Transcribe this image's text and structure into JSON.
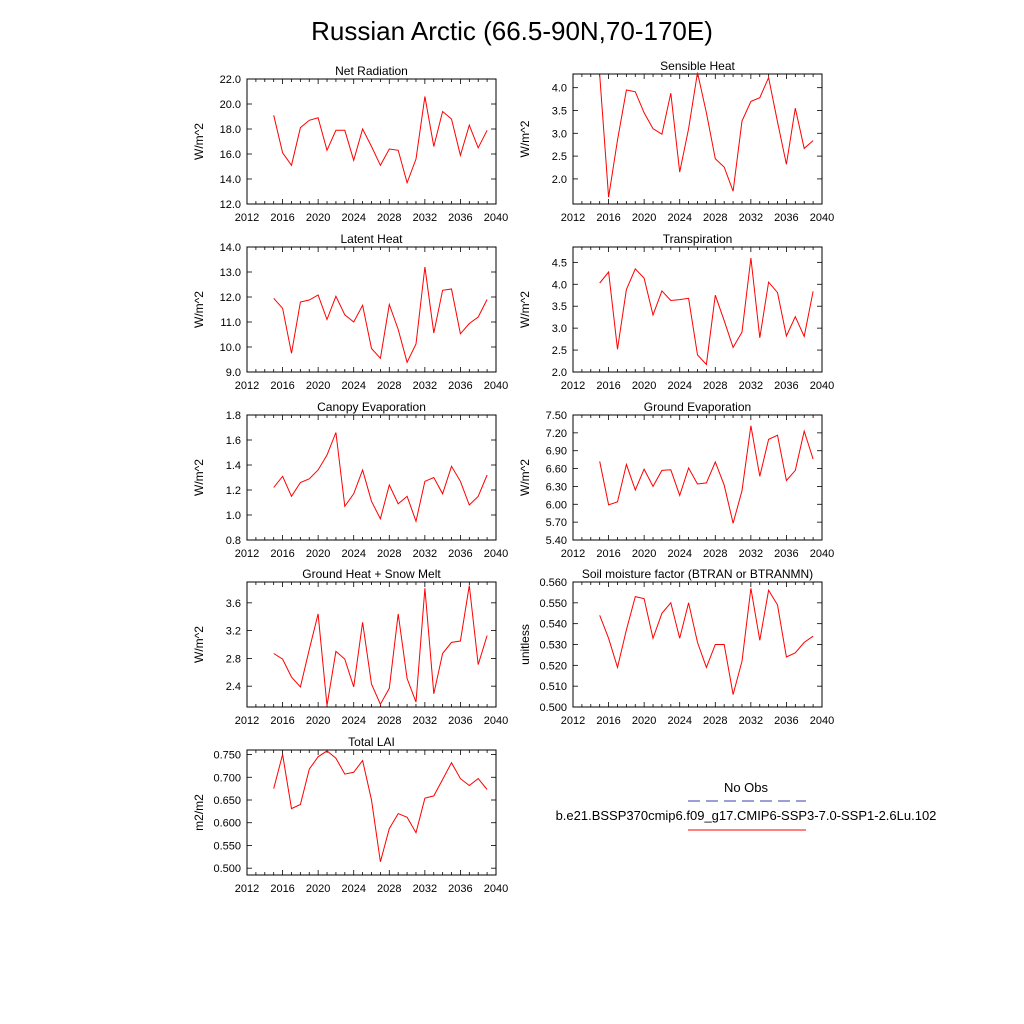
{
  "figure": {
    "title": "Russian Arctic (66.5-90N,70-170E)"
  },
  "legend": {
    "obs_label": "No Obs",
    "obs_color": "#3b3bb0",
    "model_label": "b.e21.BSSP370cmip6.f09_g17.CMIP6-SSP3-7.0-SSP1-2.6Lu.102",
    "model_color": "#ff0000"
  },
  "chart_data": [
    {
      "type": "line",
      "title": "Net Radiation",
      "ylabel": "W/m^2",
      "xlim": [
        2012,
        2040
      ],
      "ylim": [
        12,
        22
      ],
      "x_ticks": [
        "2012",
        "2016",
        "2020",
        "2024",
        "2028",
        "2032",
        "2036",
        "2040"
      ],
      "y_ticks": [
        "12.0",
        "14.0",
        "16.0",
        "18.0",
        "20.0",
        "22.0"
      ],
      "x": [
        2015,
        2016,
        2017,
        2018,
        2019,
        2020,
        2021,
        2022,
        2023,
        2024,
        2025,
        2026,
        2027,
        2028,
        2029,
        2030,
        2031,
        2032,
        2033,
        2034,
        2035,
        2036,
        2037,
        2038,
        2039
      ],
      "series": [
        {
          "color": "#ff0000",
          "values": [
            19.1,
            16.1,
            15.1,
            18.1,
            18.7,
            18.9,
            16.3,
            17.9,
            17.9,
            15.5,
            18.0,
            16.6,
            15.1,
            16.4,
            16.3,
            13.7,
            15.6,
            20.6,
            16.6,
            19.4,
            18.8,
            15.9,
            18.3,
            16.5,
            17.9
          ]
        }
      ]
    },
    {
      "type": "line",
      "title": "Sensible Heat",
      "ylabel": "W/m^2",
      "xlim": [
        2012,
        2040
      ],
      "ylim": [
        1.45,
        4.3
      ],
      "x_ticks": [
        "2012",
        "2016",
        "2020",
        "2024",
        "2028",
        "2032",
        "2036",
        "2040"
      ],
      "y_ticks": [
        "2.0",
        "2.5",
        "3.0",
        "3.5",
        "4.0"
      ],
      "x": [
        2015,
        2016,
        2017,
        2018,
        2019,
        2020,
        2021,
        2022,
        2023,
        2024,
        2025,
        2026,
        2027,
        2028,
        2029,
        2030,
        2031,
        2032,
        2033,
        2034,
        2035,
        2036,
        2037,
        2038,
        2039
      ],
      "series": [
        {
          "color": "#ff0000",
          "values": [
            4.28,
            1.6,
            2.85,
            3.95,
            3.91,
            3.45,
            3.1,
            2.98,
            3.88,
            2.15,
            3.1,
            4.33,
            3.45,
            2.44,
            2.26,
            1.73,
            3.27,
            3.7,
            3.78,
            4.22,
            3.25,
            2.32,
            3.55,
            2.67,
            2.84
          ]
        }
      ]
    },
    {
      "type": "line",
      "title": "Latent Heat",
      "ylabel": "W/m^2",
      "xlim": [
        2012,
        2040
      ],
      "ylim": [
        9,
        14
      ],
      "x_ticks": [
        "2012",
        "2016",
        "2020",
        "2024",
        "2028",
        "2032",
        "2036",
        "2040"
      ],
      "y_ticks": [
        "9.0",
        "10.0",
        "11.0",
        "12.0",
        "13.0",
        "14.0"
      ],
      "x": [
        2015,
        2016,
        2017,
        2018,
        2019,
        2020,
        2021,
        2022,
        2023,
        2024,
        2025,
        2026,
        2027,
        2028,
        2029,
        2030,
        2031,
        2032,
        2033,
        2034,
        2035,
        2036,
        2037,
        2038,
        2039
      ],
      "series": [
        {
          "color": "#ff0000",
          "values": [
            11.95,
            11.55,
            9.75,
            11.8,
            11.88,
            12.08,
            11.1,
            12.03,
            11.29,
            11.0,
            11.67,
            9.94,
            9.55,
            11.7,
            10.7,
            9.39,
            10.12,
            13.2,
            10.56,
            12.27,
            12.32,
            10.53,
            10.94,
            11.2,
            11.9
          ]
        }
      ]
    },
    {
      "type": "line",
      "title": "Transpiration",
      "ylabel": "W/m^2",
      "xlim": [
        2012,
        2040
      ],
      "ylim": [
        2.0,
        4.85
      ],
      "x_ticks": [
        "2012",
        "2016",
        "2020",
        "2024",
        "2028",
        "2032",
        "2036",
        "2040"
      ],
      "y_ticks": [
        "2.0",
        "2.5",
        "3.0",
        "3.5",
        "4.0",
        "4.5"
      ],
      "x": [
        2015,
        2016,
        2017,
        2018,
        2019,
        2020,
        2021,
        2022,
        2023,
        2024,
        2025,
        2026,
        2027,
        2028,
        2029,
        2030,
        2031,
        2032,
        2033,
        2034,
        2035,
        2036,
        2037,
        2038,
        2039
      ],
      "series": [
        {
          "color": "#ff0000",
          "values": [
            4.03,
            4.28,
            2.52,
            3.88,
            4.35,
            4.14,
            3.3,
            3.85,
            3.63,
            3.65,
            3.68,
            2.39,
            2.17,
            3.75,
            3.17,
            2.56,
            2.91,
            4.6,
            2.78,
            4.05,
            3.81,
            2.82,
            3.26,
            2.81,
            3.84
          ]
        }
      ]
    },
    {
      "type": "line",
      "title": "Canopy Evaporation",
      "ylabel": "W/m^2",
      "xlim": [
        2012,
        2040
      ],
      "ylim": [
        0.8,
        1.8
      ],
      "x_ticks": [
        "2012",
        "2016",
        "2020",
        "2024",
        "2028",
        "2032",
        "2036",
        "2040"
      ],
      "y_ticks": [
        "0.8",
        "1.0",
        "1.2",
        "1.4",
        "1.6",
        "1.8"
      ],
      "x": [
        2015,
        2016,
        2017,
        2018,
        2019,
        2020,
        2021,
        2022,
        2023,
        2024,
        2025,
        2026,
        2027,
        2028,
        2029,
        2030,
        2031,
        2032,
        2033,
        2034,
        2035,
        2036,
        2037,
        2038,
        2039
      ],
      "series": [
        {
          "color": "#ff0000",
          "values": [
            1.22,
            1.31,
            1.15,
            1.26,
            1.29,
            1.36,
            1.48,
            1.66,
            1.07,
            1.17,
            1.36,
            1.11,
            0.97,
            1.24,
            1.09,
            1.15,
            0.95,
            1.27,
            1.3,
            1.17,
            1.39,
            1.27,
            1.08,
            1.15,
            1.32
          ]
        }
      ]
    },
    {
      "type": "line",
      "title": "Ground Evaporation",
      "ylabel": "W/m^2",
      "xlim": [
        2012,
        2040
      ],
      "ylim": [
        5.4,
        7.5
      ],
      "x_ticks": [
        "2012",
        "2016",
        "2020",
        "2024",
        "2028",
        "2032",
        "2036",
        "2040"
      ],
      "y_ticks": [
        "5.40",
        "5.70",
        "6.00",
        "6.30",
        "6.60",
        "6.90",
        "7.20",
        "7.50"
      ],
      "x": [
        2015,
        2016,
        2017,
        2018,
        2019,
        2020,
        2021,
        2022,
        2023,
        2024,
        2025,
        2026,
        2027,
        2028,
        2029,
        2030,
        2031,
        2032,
        2033,
        2034,
        2035,
        2036,
        2037,
        2038,
        2039
      ],
      "series": [
        {
          "color": "#ff0000",
          "values": [
            6.72,
            5.99,
            6.04,
            6.67,
            6.24,
            6.59,
            6.3,
            6.57,
            6.58,
            6.15,
            6.61,
            6.34,
            6.36,
            6.71,
            6.32,
            5.68,
            6.23,
            7.32,
            6.47,
            7.09,
            7.16,
            6.4,
            6.57,
            7.23,
            6.76
          ]
        }
      ]
    },
    {
      "type": "line",
      "title": "Ground Heat + Snow Melt",
      "ylabel": "W/m^2",
      "xlim": [
        2012,
        2040
      ],
      "ylim": [
        2.1,
        3.9
      ],
      "x_ticks": [
        "2012",
        "2016",
        "2020",
        "2024",
        "2028",
        "2032",
        "2036",
        "2040"
      ],
      "y_ticks": [
        "2.4",
        "2.8",
        "3.2",
        "3.6"
      ],
      "x": [
        2015,
        2016,
        2017,
        2018,
        2019,
        2020,
        2021,
        2022,
        2023,
        2024,
        2025,
        2026,
        2027,
        2028,
        2029,
        2030,
        2031,
        2032,
        2033,
        2034,
        2035,
        2036,
        2037,
        2038,
        2039
      ],
      "series": [
        {
          "color": "#ff0000",
          "values": [
            2.87,
            2.79,
            2.53,
            2.39,
            2.93,
            3.44,
            2.12,
            2.9,
            2.79,
            2.39,
            3.32,
            2.43,
            2.14,
            2.37,
            3.44,
            2.51,
            2.17,
            3.81,
            2.29,
            2.87,
            3.03,
            3.05,
            3.85,
            2.71,
            3.13
          ]
        }
      ]
    },
    {
      "type": "line",
      "title": "Soil moisture factor (BTRAN or BTRANMN)",
      "ylabel": "unitless",
      "xlim": [
        2012,
        2040
      ],
      "ylim": [
        0.5,
        0.56
      ],
      "x_ticks": [
        "2012",
        "2016",
        "2020",
        "2024",
        "2028",
        "2032",
        "2036",
        "2040"
      ],
      "y_ticks": [
        "0.500",
        "0.510",
        "0.520",
        "0.530",
        "0.540",
        "0.550",
        "0.560"
      ],
      "x": [
        2015,
        2016,
        2017,
        2018,
        2019,
        2020,
        2021,
        2022,
        2023,
        2024,
        2025,
        2026,
        2027,
        2028,
        2029,
        2030,
        2031,
        2032,
        2033,
        2034,
        2035,
        2036,
        2037,
        2038,
        2039
      ],
      "series": [
        {
          "color": "#ff0000",
          "values": [
            0.544,
            0.533,
            0.519,
            0.537,
            0.553,
            0.552,
            0.533,
            0.545,
            0.55,
            0.533,
            0.55,
            0.531,
            0.519,
            0.53,
            0.53,
            0.506,
            0.522,
            0.557,
            0.532,
            0.556,
            0.549,
            0.524,
            0.526,
            0.531,
            0.534
          ]
        }
      ]
    },
    {
      "type": "line",
      "title": "Total LAI",
      "ylabel": "m2/m2",
      "xlim": [
        2012,
        2040
      ],
      "ylim": [
        0.485,
        0.76
      ],
      "x_ticks": [
        "2012",
        "2016",
        "2020",
        "2024",
        "2028",
        "2032",
        "2036",
        "2040"
      ],
      "y_ticks": [
        "0.500",
        "0.550",
        "0.600",
        "0.650",
        "0.700",
        "0.750"
      ],
      "x": [
        2015,
        2016,
        2017,
        2018,
        2019,
        2020,
        2021,
        2022,
        2023,
        2024,
        2025,
        2026,
        2027,
        2028,
        2029,
        2030,
        2031,
        2032,
        2033,
        2034,
        2035,
        2036,
        2037,
        2038,
        2039
      ],
      "series": [
        {
          "color": "#ff0000",
          "values": [
            0.675,
            0.75,
            0.631,
            0.64,
            0.718,
            0.745,
            0.758,
            0.742,
            0.707,
            0.711,
            0.737,
            0.65,
            0.514,
            0.587,
            0.62,
            0.612,
            0.578,
            0.654,
            0.659,
            0.695,
            0.732,
            0.697,
            0.682,
            0.697,
            0.673
          ]
        }
      ]
    }
  ]
}
